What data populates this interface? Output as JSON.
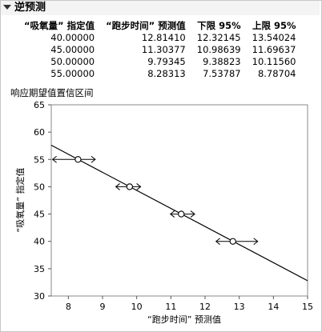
{
  "report": {
    "title": "逆预测",
    "table": {
      "headers": [
        "“吸氧量” 指定值",
        "“跑步时间” 预测值",
        "下限 95%",
        "上限 95%"
      ],
      "rows": [
        [
          "40.00000",
          "12.81410",
          "12.32145",
          "13.54024"
        ],
        [
          "45.00000",
          "11.30377",
          "10.98639",
          "11.69637"
        ],
        [
          "50.00000",
          "9.79345",
          "9.38823",
          "10.11560"
        ],
        [
          "55.00000",
          "8.28313",
          "7.53787",
          "8.78704"
        ]
      ]
    },
    "plot_label": "响应期望值置信区间"
  },
  "chart_data": {
    "type": "scatter",
    "xlabel": "“跑步时间” 预测值",
    "ylabel": "“吸氧量” 指定值",
    "xlim": [
      7.5,
      15
    ],
    "ylim": [
      30,
      65
    ],
    "xticks": [
      8,
      9,
      10,
      11,
      12,
      13,
      14,
      15
    ],
    "yticks": [
      30,
      35,
      40,
      45,
      50,
      55,
      60,
      65
    ],
    "fit_line": {
      "x": [
        7.5,
        15
      ],
      "y": [
        57.6,
        32.8
      ]
    },
    "points": [
      {
        "y": 40,
        "x": 12.8141,
        "lower": 12.32145,
        "upper": 13.54024
      },
      {
        "y": 45,
        "x": 11.30377,
        "lower": 10.98639,
        "upper": 11.69637
      },
      {
        "y": 50,
        "x": 9.79345,
        "lower": 9.38823,
        "upper": 10.1156
      },
      {
        "y": 55,
        "x": 8.28313,
        "lower": 7.53787,
        "upper": 8.78704
      }
    ],
    "grid": false,
    "line_color": "#000000"
  }
}
